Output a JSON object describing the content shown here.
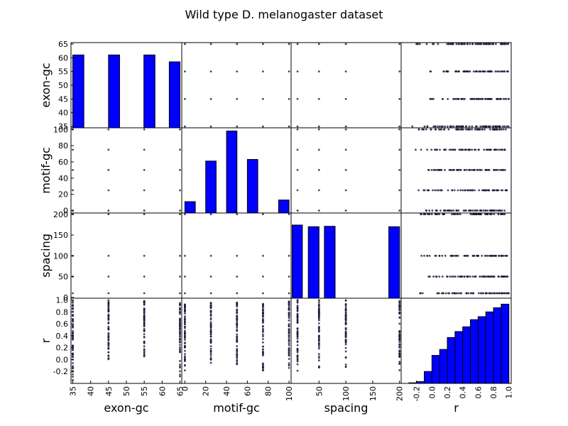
{
  "chart_data": {
    "type": "scatter_matrix",
    "title": "Wild type D. melanogaster dataset",
    "variables": [
      "exon-gc",
      "motif-gc",
      "spacing",
      "r"
    ],
    "colors": {
      "bar_fill": "#0000ff",
      "bar_edge": "#000000",
      "point": "#1a1a3a"
    },
    "axes": {
      "exon-gc": {
        "range": [
          34.5,
          65.5
        ],
        "ticks": [
          35,
          40,
          45,
          50,
          55,
          60,
          65
        ]
      },
      "motif-gc": {
        "range": [
          -3,
          102
        ],
        "ticks": [
          0,
          20,
          40,
          60,
          80,
          100
        ]
      },
      "spacing": {
        "range": [
          -2,
          203
        ],
        "ticks": [
          0,
          50,
          100,
          150,
          200
        ]
      },
      "r": {
        "range": [
          -0.4,
          1.03
        ],
        "ticks": [
          -0.2,
          0.0,
          0.2,
          0.4,
          0.6,
          0.8,
          1.0
        ]
      }
    },
    "x_tick_labels": {
      "exon-gc": [
        "35",
        "40",
        "45",
        "50",
        "55",
        "60",
        "65"
      ],
      "motif-gc": [
        "0",
        "20",
        "40",
        "60",
        "80",
        "100"
      ],
      "spacing": [
        "50",
        "100",
        "150",
        "200"
      ],
      "r": [
        "-0.2",
        "0.0",
        "0.2",
        "0.4",
        "0.6",
        "0.8",
        "1.0"
      ]
    },
    "y_tick_labels": {
      "exon-gc": [
        "35",
        "40",
        "45",
        "50",
        "55",
        "60",
        "65"
      ],
      "motif-gc": [
        "0",
        "20",
        "40",
        "60",
        "80",
        "100"
      ],
      "spacing": [
        "0",
        "50",
        "100",
        "150",
        "200"
      ],
      "r": [
        "-0.2",
        "0.0",
        "0.2",
        "0.4",
        "0.6",
        "0.8",
        "1.0"
      ]
    },
    "histograms": {
      "exon-gc": {
        "bins": [
          [
            35,
            38.1
          ],
          [
            45.0,
            48.1
          ],
          [
            54.9,
            58.0
          ],
          [
            62.0,
            65.0
          ]
        ],
        "counts": [
          61,
          61,
          61,
          58.5
        ],
        "ylim": [
          34.5,
          65.5
        ]
      },
      "motif-gc": {
        "bins": [
          [
            0,
            10
          ],
          [
            20,
            30
          ],
          [
            40,
            50
          ],
          [
            60,
            70
          ],
          [
            90,
            100
          ]
        ],
        "counts": [
          11,
          61,
          98,
          63,
          13
        ],
        "ylim": [
          -3,
          102
        ]
      },
      "spacing": {
        "bins": [
          [
            0,
            19
          ],
          [
            30,
            50
          ],
          [
            60,
            80
          ],
          [
            180,
            200
          ]
        ],
        "counts": [
          174,
          170,
          171,
          170
        ],
        "ylim": [
          -2,
          203
        ]
      },
      "r": {
        "bins": [
          [
            -0.3,
            -0.2
          ],
          [
            -0.2,
            -0.1
          ],
          [
            -0.1,
            0.0
          ],
          [
            0.0,
            0.1
          ],
          [
            0.1,
            0.2
          ],
          [
            0.2,
            0.3
          ],
          [
            0.3,
            0.4
          ],
          [
            0.4,
            0.5
          ],
          [
            0.5,
            0.6
          ],
          [
            0.6,
            0.7
          ],
          [
            0.7,
            0.8
          ],
          [
            0.8,
            0.9
          ],
          [
            0.9,
            1.0
          ]
        ],
        "counts": [
          -0.39,
          -0.37,
          -0.2,
          0.07,
          0.17,
          0.37,
          0.47,
          0.55,
          0.67,
          0.72,
          0.8,
          0.87,
          0.93
        ],
        "ylim": [
          -0.4,
          1.03
        ]
      }
    },
    "levels": {
      "exon-gc": [
        35,
        45,
        55,
        65
      ],
      "motif-gc": [
        0,
        25,
        50,
        75,
        100
      ],
      "spacing": [
        10,
        50,
        100,
        200
      ]
    },
    "r_ranges": {
      "exon-gc": {
        "35": [
          -0.35,
          1.0
        ],
        "45": [
          -0.05,
          1.0
        ],
        "55": [
          -0.05,
          1.0
        ],
        "65": [
          -0.3,
          1.0
        ]
      },
      "motif-gc": {
        "0": [
          -0.2,
          0.95
        ],
        "25": [
          -0.2,
          0.98
        ],
        "50": [
          -0.1,
          0.98
        ],
        "75": [
          -0.25,
          0.98
        ],
        "100": [
          -0.2,
          0.98
        ]
      },
      "spacing": {
        "10": [
          -0.2,
          1.0
        ],
        "50": [
          -0.2,
          1.0
        ],
        "100": [
          -0.15,
          1.0
        ],
        "200": [
          -0.2,
          1.0
        ]
      }
    }
  }
}
